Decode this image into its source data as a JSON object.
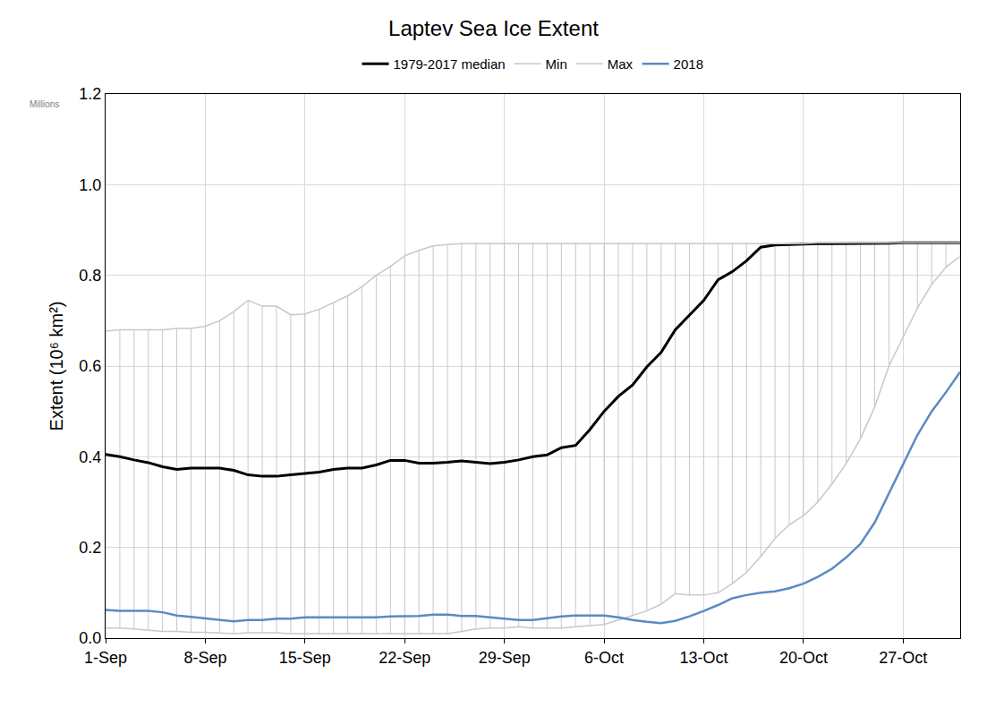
{
  "chart_data": {
    "type": "line",
    "title": "Laptev Sea Ice Extent",
    "y_label": "Extent (10⁶ km²)",
    "annotations": [
      "Millions"
    ],
    "categories": [
      "1-Sep",
      null,
      null,
      null,
      null,
      null,
      null,
      "8-Sep",
      null,
      null,
      null,
      null,
      null,
      null,
      "15-Sep",
      null,
      null,
      null,
      null,
      null,
      null,
      "22-Sep",
      null,
      null,
      null,
      null,
      null,
      null,
      "29-Sep",
      null,
      null,
      null,
      null,
      null,
      null,
      "6-Oct",
      null,
      null,
      null,
      null,
      null,
      null,
      "13-Oct",
      null,
      null,
      null,
      null,
      null,
      null,
      "20-Oct",
      null,
      null,
      null,
      null,
      null,
      null,
      "27-Oct",
      null,
      null,
      null,
      null
    ],
    "series": [
      {
        "name": "1979-2017 median",
        "color": "#000000",
        "values": [
          0.405,
          0.4,
          0.393,
          0.387,
          0.378,
          0.372,
          0.375,
          0.375,
          0.375,
          0.37,
          0.36,
          0.357,
          0.357,
          0.36,
          0.363,
          0.366,
          0.372,
          0.375,
          0.375,
          0.382,
          0.392,
          0.392,
          0.386,
          0.386,
          0.388,
          0.391,
          0.388,
          0.385,
          0.388,
          0.393,
          0.4,
          0.404,
          0.42,
          0.425,
          0.46,
          0.5,
          0.533,
          0.558,
          0.598,
          0.63,
          0.68,
          0.712,
          0.745,
          0.79,
          0.808,
          0.832,
          0.862,
          0.867,
          0.868,
          0.87,
          0.87,
          0.87,
          0.87,
          0.87,
          0.87,
          0.871,
          0.872,
          0.872,
          0.872,
          0.872,
          0.872
        ]
      },
      {
        "name": "Min",
        "color": "#c8c8c8",
        "values": [
          0.022,
          0.022,
          0.02,
          0.018,
          0.015,
          0.015,
          0.013,
          0.013,
          0.012,
          0.01,
          0.012,
          0.012,
          0.012,
          0.01,
          0.01,
          0.01,
          0.01,
          0.01,
          0.01,
          0.01,
          0.01,
          0.01,
          0.01,
          0.01,
          0.01,
          0.015,
          0.02,
          0.022,
          0.022,
          0.025,
          0.022,
          0.022,
          0.022,
          0.025,
          0.028,
          0.03,
          0.04,
          0.05,
          0.06,
          0.075,
          0.098,
          0.095,
          0.095,
          0.1,
          0.12,
          0.145,
          0.18,
          0.22,
          0.25,
          0.27,
          0.3,
          0.34,
          0.385,
          0.44,
          0.51,
          0.6,
          0.665,
          0.728,
          0.78,
          0.818,
          0.842
        ]
      },
      {
        "name": "Max",
        "color": "#c8c8c8",
        "values": [
          0.677,
          0.68,
          0.68,
          0.68,
          0.68,
          0.683,
          0.683,
          0.688,
          0.7,
          0.72,
          0.745,
          0.732,
          0.732,
          0.713,
          0.715,
          0.725,
          0.74,
          0.755,
          0.775,
          0.8,
          0.82,
          0.843,
          0.855,
          0.865,
          0.868,
          0.87,
          0.87,
          0.87,
          0.87,
          0.87,
          0.87,
          0.87,
          0.87,
          0.87,
          0.87,
          0.87,
          0.87,
          0.87,
          0.87,
          0.87,
          0.87,
          0.87,
          0.87,
          0.87,
          0.87,
          0.87,
          0.87,
          0.87,
          0.87,
          0.87,
          0.872,
          0.872,
          0.872,
          0.872,
          0.872,
          0.872,
          0.872,
          0.872,
          0.872,
          0.872,
          0.872
        ]
      },
      {
        "name": "2018",
        "color": "#5b8ac4",
        "values": [
          0.062,
          0.06,
          0.06,
          0.06,
          0.057,
          0.05,
          0.047,
          0.044,
          0.04,
          0.037,
          0.04,
          0.04,
          0.043,
          0.043,
          0.046,
          0.046,
          0.046,
          0.046,
          0.046,
          0.046,
          0.048,
          0.049,
          0.049,
          0.052,
          0.052,
          0.049,
          0.049,
          0.046,
          0.043,
          0.04,
          0.04,
          0.044,
          0.048,
          0.05,
          0.05,
          0.05,
          0.046,
          0.04,
          0.036,
          0.033,
          0.038,
          0.048,
          0.06,
          0.073,
          0.088,
          0.095,
          0.1,
          0.103,
          0.11,
          0.12,
          0.135,
          0.153,
          0.178,
          0.208,
          0.255,
          0.32,
          0.385,
          0.448,
          0.5,
          0.542,
          0.587
        ]
      }
    ],
    "ylim": [
      0,
      1.2
    ],
    "yticks": [
      {
        "value": 0,
        "label": "0.0"
      },
      0.2,
      0.4,
      0.6,
      0.8,
      {
        "value": 1,
        "label": "1.0"
      },
      1.2
    ],
    "grid": true,
    "legend": "top"
  }
}
